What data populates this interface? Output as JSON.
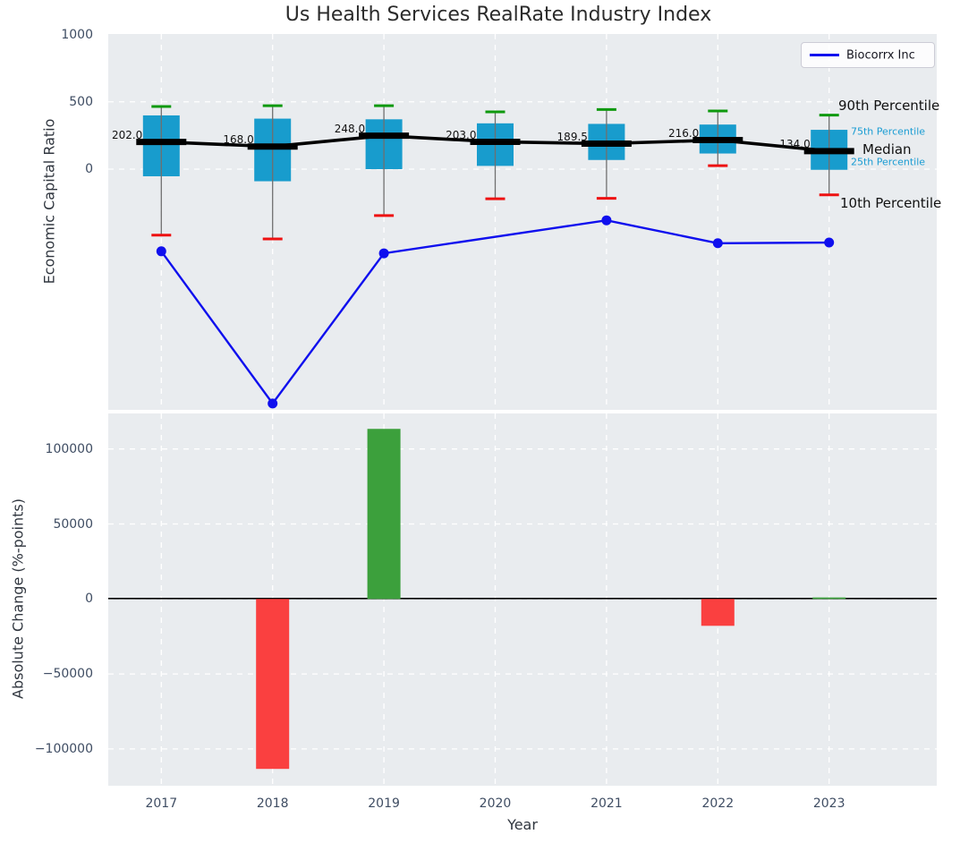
{
  "title": "Us Health Services RealRate Industry Index",
  "legend": {
    "label": "Biocorrx Inc"
  },
  "annotations": {
    "p90": "90th Percentile",
    "p75": "75th Percentile",
    "median": "Median",
    "p25": "25th Percentile",
    "p10": "10th Percentile"
  },
  "axes": {
    "top": {
      "ylabel": "Economic Capital Ratio",
      "yticks": [
        "1000",
        "500",
        "0"
      ]
    },
    "bottom": {
      "ylabel": "Absolute Change (%-points)",
      "xlabel": "Year",
      "yticks": [
        "100000",
        "50000",
        "0",
        "−50000",
        "−100000"
      ]
    }
  },
  "colors": {
    "box_fill": "#189ccd",
    "median": "#000000",
    "whisker": "#6f6f6f",
    "cap_90th": "#0e990e",
    "cap_10th": "#ee1111",
    "company_line": "#0f0fee",
    "bar_positive": "#3ca03c",
    "bar_negative": "#fa4040",
    "axes_bg": "#e9ecef",
    "grid": "#ffffff",
    "tick_text": "#3f4d63",
    "percentile_label": "#1a9cd3"
  },
  "chart_data": [
    {
      "type": "boxplot+line",
      "title": "Us Health Services RealRate Industry Index",
      "ylabel": "Economic Capital Ratio",
      "yticks": [
        1000,
        500,
        0
      ],
      "ylim": [
        -1780,
        1005
      ],
      "grid": "white dashed on light gray",
      "legend_position": "upper right",
      "categories": [
        2017,
        2018,
        2019,
        2020,
        2021,
        2022,
        2023
      ],
      "boxes": [
        {
          "year": 2017,
          "p10": -490,
          "p25": -53,
          "median": 202.0,
          "p75": 399,
          "p90": 465,
          "label": "202.0"
        },
        {
          "year": 2018,
          "p10": -518,
          "p25": -90,
          "median": 168.0,
          "p75": 375,
          "p90": 471,
          "label": "168.0"
        },
        {
          "year": 2019,
          "p10": -345,
          "p25": 0,
          "median": 248.0,
          "p75": 370,
          "p90": 471,
          "label": "248.0"
        },
        {
          "year": 2020,
          "p10": -220,
          "p25": 24,
          "median": 203.0,
          "p75": 340,
          "p90": 425,
          "label": "203.0"
        },
        {
          "year": 2021,
          "p10": -217,
          "p25": 68,
          "median": 189.5,
          "p75": 336,
          "p90": 443,
          "label": "189.5"
        },
        {
          "year": 2022,
          "p10": 26,
          "p25": 116,
          "median": 216.0,
          "p75": 331,
          "p90": 432,
          "label": "216.0"
        },
        {
          "year": 2023,
          "p10": -191,
          "p25": -5,
          "median": 134.0,
          "p75": 292,
          "p90": 401,
          "label": "134.0"
        }
      ],
      "series": [
        {
          "name": "Biocorrx Inc",
          "values": [
            -610,
            -1740,
            -625,
            null,
            -380,
            -550,
            -545
          ]
        }
      ]
    },
    {
      "type": "bar",
      "ylabel": "Absolute Change (%-points)",
      "xlabel": "Year",
      "yticks": [
        100000,
        50000,
        0,
        -50000,
        -100000
      ],
      "ylim": [
        -124000,
        124000
      ],
      "categories": [
        2017,
        2018,
        2019,
        2020,
        2021,
        2022,
        2023
      ],
      "values": [
        null,
        -113300,
        113400,
        null,
        null,
        -17900,
        1000
      ]
    }
  ]
}
